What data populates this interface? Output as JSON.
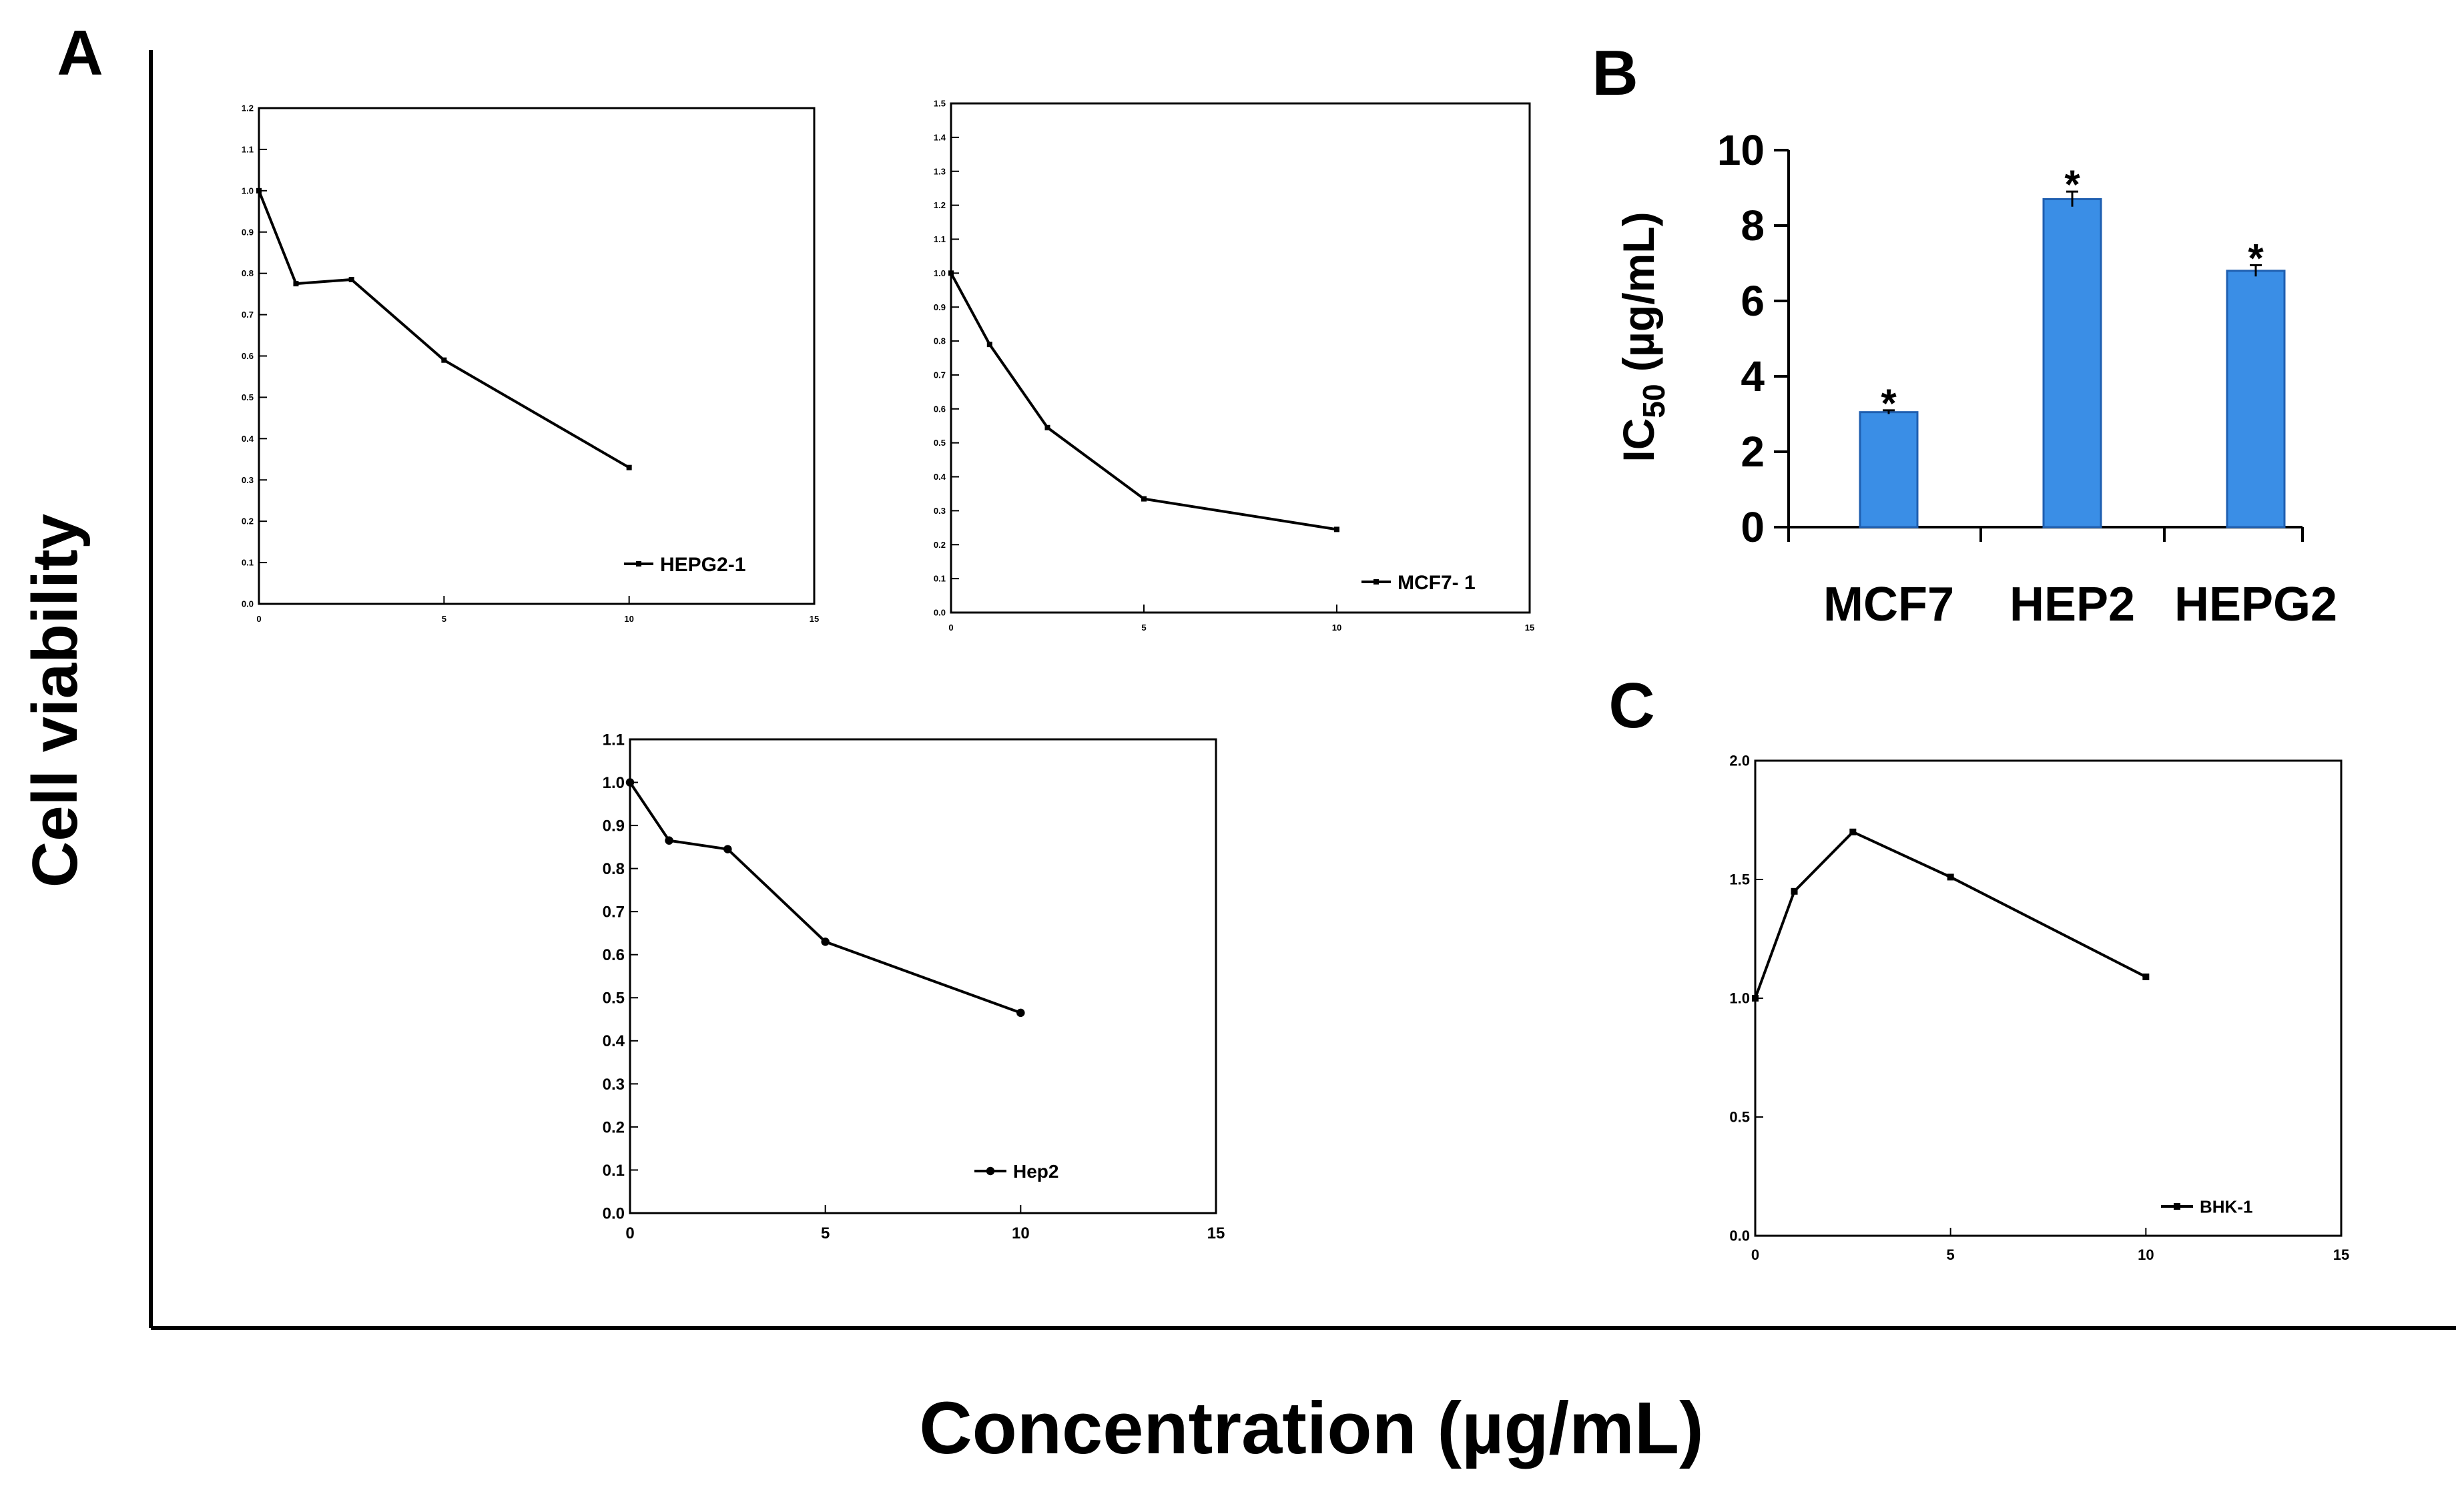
{
  "figure": {
    "panel_labels": {
      "a": "A",
      "b": "B",
      "c": "C"
    },
    "ylabel": "Cell viability",
    "xlabel": "Concentration (µg/mL)"
  },
  "chart_data": [
    {
      "id": "hepg2",
      "panel": "A",
      "type": "line",
      "title": "",
      "xlabel": "",
      "ylabel": "",
      "xlim": [
        0,
        15
      ],
      "ylim": [
        0,
        1.2
      ],
      "xticks": [
        0,
        5,
        10,
        15
      ],
      "xtick_labels": [
        "0",
        "5",
        "10",
        "15"
      ],
      "yticks": [
        0,
        0.1,
        0.2,
        0.3,
        0.4,
        0.5,
        0.6,
        0.7,
        0.8,
        0.9,
        1.0,
        1.1,
        1.2
      ],
      "ytick_labels": [
        "0.0",
        "0.1",
        "0.2",
        "0.3",
        "0.4",
        "0.5",
        "0.6",
        "0.7",
        "0.8",
        "0.9",
        "1.0",
        "1.1",
        "1.2"
      ],
      "grid": false,
      "legend_position": "bottom-right",
      "series": [
        {
          "name": "HEPG2-1",
          "marker": "square",
          "x": [
            0,
            1,
            2.5,
            5,
            10
          ],
          "y": [
            1.0,
            0.775,
            0.785,
            0.59,
            0.33
          ]
        }
      ]
    },
    {
      "id": "mcf7",
      "panel": "A",
      "type": "line",
      "title": "",
      "xlabel": "",
      "ylabel": "",
      "xlim": [
        0,
        15
      ],
      "ylim": [
        0,
        1.5
      ],
      "xticks": [
        0,
        5,
        10,
        15
      ],
      "xtick_labels": [
        "0",
        "5",
        "10",
        "15"
      ],
      "yticks": [
        0,
        0.1,
        0.2,
        0.3,
        0.4,
        0.5,
        0.6,
        0.7,
        0.8,
        0.9,
        1.0,
        1.1,
        1.2,
        1.3,
        1.4,
        1.5
      ],
      "ytick_labels": [
        "0.0",
        "0.1",
        "0.2",
        "0.3",
        "0.4",
        "0.5",
        "0.6",
        "0.7",
        "0.8",
        "0.9",
        "1.0",
        "1.1",
        "1.2",
        "1.3",
        "1.4",
        "1.5"
      ],
      "grid": false,
      "legend_position": "bottom-right",
      "series": [
        {
          "name": "MCF7- 1",
          "marker": "square",
          "x": [
            0,
            1,
            2.5,
            5,
            10
          ],
          "y": [
            1.0,
            0.79,
            0.545,
            0.335,
            0.245
          ]
        }
      ]
    },
    {
      "id": "hep2",
      "panel": "A",
      "type": "line",
      "title": "",
      "xlabel": "",
      "ylabel": "",
      "xlim": [
        0,
        15
      ],
      "ylim": [
        0,
        1.1
      ],
      "xticks": [
        0,
        5,
        10,
        15
      ],
      "xtick_labels": [
        "0",
        "5",
        "10",
        "15"
      ],
      "yticks": [
        0,
        0.1,
        0.2,
        0.3,
        0.4,
        0.5,
        0.6,
        0.7,
        0.8,
        0.9,
        1.0,
        1.1
      ],
      "ytick_labels": [
        "0.0",
        "0.1",
        "0.2",
        "0.3",
        "0.4",
        "0.5",
        "0.6",
        "0.7",
        "0.8",
        "0.9",
        "1.0",
        "1.1"
      ],
      "grid": false,
      "legend_position": "bottom-right",
      "series": [
        {
          "name": "Hep2",
          "marker": "circle",
          "x": [
            0,
            1,
            2.5,
            5,
            10
          ],
          "y": [
            1.0,
            0.865,
            0.845,
            0.63,
            0.465
          ]
        }
      ]
    },
    {
      "id": "ic50",
      "panel": "B",
      "type": "bar",
      "title": "",
      "xlabel": "",
      "ylabel": "IC50 (µg/mL)",
      "ylabel_parts": {
        "main": "IC",
        "sub": "50",
        "rest": " (µg/mL)"
      },
      "ylim": [
        0,
        10
      ],
      "yticks": [
        0,
        2,
        4,
        6,
        8,
        10
      ],
      "ytick_labels": [
        "0",
        "2",
        "4",
        "6",
        "8",
        "10"
      ],
      "categories": [
        "MCF7",
        "HEP2",
        "HEPG2"
      ],
      "values": [
        3.05,
        8.7,
        6.8
      ],
      "errors": [
        0.05,
        0.2,
        0.15
      ],
      "annotations": [
        "*",
        "*",
        "*"
      ],
      "bar_color": "#3a8ee6",
      "grid": false
    },
    {
      "id": "bhk",
      "panel": "C",
      "type": "line",
      "title": "",
      "xlabel": "",
      "ylabel": "",
      "xlim": [
        0,
        15
      ],
      "ylim": [
        0,
        2.0
      ],
      "xticks": [
        0,
        5,
        10,
        15
      ],
      "xtick_labels": [
        "0",
        "5",
        "10",
        "15"
      ],
      "yticks": [
        0,
        0.5,
        1.0,
        1.5,
        2.0
      ],
      "ytick_labels": [
        "0.0",
        "0.5",
        "1.0",
        "1.5",
        "2.0"
      ],
      "grid": false,
      "legend_position": "bottom-right",
      "series": [
        {
          "name": "BHK-1",
          "marker": "square",
          "x": [
            0,
            1,
            2.5,
            5,
            10
          ],
          "y": [
            1.0,
            1.45,
            1.7,
            1.51,
            1.09
          ]
        }
      ]
    }
  ]
}
